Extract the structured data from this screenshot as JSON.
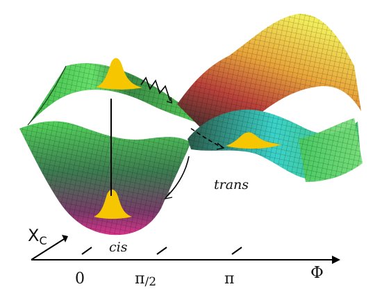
{
  "labels": {
    "trans": "trans",
    "cis": "cis",
    "xc_main": "X",
    "xc_sub": "C",
    "tick0": "0",
    "tick_pi2_main": "π",
    "tick_pi2_sub": "/2",
    "tick_pi": "π",
    "axis_phi": "Φ"
  },
  "colors": {
    "upper_surface": "#58d85a",
    "lower_surface": "#4ac85a",
    "barrier_yellow": "#f2e24a",
    "barrier_red": "#c84a3a",
    "cis_well_magenta": "#c2348a",
    "trans_well_cyan": "#3ad2c8",
    "wavepacket": "#f6c600",
    "axis": "#000000"
  }
}
